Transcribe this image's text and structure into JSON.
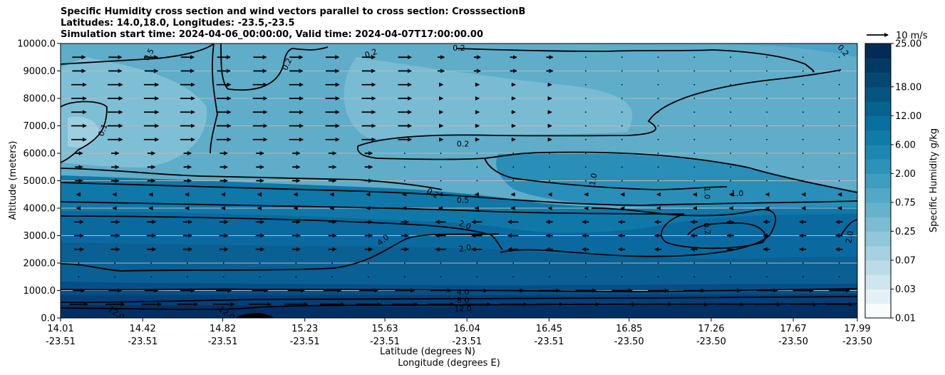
{
  "chart_data": {
    "type": "heatmap",
    "title_lines": [
      "Specific Humidity cross section and wind vectors parallel to cross section: CrosssectionB",
      "Latitudes: 14.0,18.0, Longitudes: -23.5,-23.5",
      "Simulation start time: 2024-04-06_00:00:00, Valid time: 2024-04-07T17:00:00.00"
    ],
    "ylabel": "Altitude (meters)",
    "xlabel_lines": [
      "Latitude (degrees N)",
      "Longitude (degrees E)"
    ],
    "ylim": [
      0,
      10000
    ],
    "y_ticks": [
      "0.0",
      "1000.0",
      "2000.0",
      "3000.0",
      "4000.0",
      "5000.0",
      "6000.0",
      "7000.0",
      "8000.0",
      "9000.0",
      "10000.0"
    ],
    "y_tick_values": [
      0,
      1000,
      2000,
      3000,
      4000,
      5000,
      6000,
      7000,
      8000,
      9000,
      10000
    ],
    "x_ticks": [
      {
        "lat": "14.01",
        "lon": "-23.51"
      },
      {
        "lat": "14.42",
        "lon": "-23.51"
      },
      {
        "lat": "14.82",
        "lon": "-23.51"
      },
      {
        "lat": "15.23",
        "lon": "-23.51"
      },
      {
        "lat": "15.63",
        "lon": "-23.51"
      },
      {
        "lat": "16.04",
        "lon": "-23.51"
      },
      {
        "lat": "16.45",
        "lon": "-23.51"
      },
      {
        "lat": "16.85",
        "lon": "-23.50"
      },
      {
        "lat": "17.26",
        "lon": "-23.50"
      },
      {
        "lat": "17.67",
        "lon": "-23.50"
      },
      {
        "lat": "17.99",
        "lon": "-23.50"
      }
    ],
    "xlim": [
      14.01,
      17.99
    ],
    "grid": "horizontal",
    "colorbar": {
      "label": "Specific Humidity g/kg",
      "ticks": [
        "0.01",
        "0.03",
        "0.07",
        "0.25",
        "0.75",
        "2.00",
        "6.00",
        "12.00",
        "18.00",
        "25.00"
      ],
      "levels": [
        0.01,
        0.02,
        0.03,
        0.05,
        0.07,
        0.1,
        0.25,
        0.4,
        0.75,
        1.0,
        2.0,
        3.0,
        6.0,
        9.0,
        12.0,
        15.0,
        18.0,
        21.0,
        25.0
      ],
      "colors": [
        "#f7fcfd",
        "#e3f1f5",
        "#cfe6ee",
        "#bbdce7",
        "#a6d1e0",
        "#91c7da",
        "#7bbcd3",
        "#66b2cb",
        "#53a8c6",
        "#3f9dbf",
        "#2b92b9",
        "#1d87b1",
        "#117ba8",
        "#096f9e",
        "#06628f",
        "#055580",
        "#044872",
        "#033a63",
        "#022c55"
      ]
    },
    "quiver_key": {
      "label": "10 m/s",
      "speed": 10
    },
    "contour_labels": [
      {
        "text": "0.5",
        "lat": 14.45,
        "alt": 9600,
        "rot": -60
      },
      {
        "text": "0.2",
        "lat": 15.14,
        "alt": 9250,
        "rot": -65
      },
      {
        "text": "0.2",
        "lat": 15.56,
        "alt": 9650,
        "rot": -20
      },
      {
        "text": "0.2",
        "lat": 16.0,
        "alt": 9850,
        "rot": 0
      },
      {
        "text": "0.2",
        "lat": 17.92,
        "alt": 9750,
        "rot": 50
      },
      {
        "text": "0.1",
        "lat": 14.22,
        "alt": 6850,
        "rot": -70
      },
      {
        "text": "0.2",
        "lat": 16.02,
        "alt": 6350,
        "rot": 0
      },
      {
        "text": "1.0",
        "lat": 16.67,
        "alt": 5050,
        "rot": -80
      },
      {
        "text": "1.0",
        "lat": 17.24,
        "alt": 4550,
        "rot": 90
      },
      {
        "text": "1.0",
        "lat": 17.39,
        "alt": 4550,
        "rot": 0
      },
      {
        "text": "0.2",
        "lat": 15.87,
        "alt": 4550,
        "rot": 30
      },
      {
        "text": "0.5",
        "lat": 16.02,
        "alt": 4300,
        "rot": 0
      },
      {
        "text": "2.0",
        "lat": 16.03,
        "alt": 3400,
        "rot": 20
      },
      {
        "text": "2.0",
        "lat": 16.03,
        "alt": 2550,
        "rot": -10
      },
      {
        "text": "4.0",
        "lat": 15.62,
        "alt": 2850,
        "rot": -40
      },
      {
        "text": "0.2",
        "lat": 17.24,
        "alt": 3250,
        "rot": 80
      },
      {
        "text": "2.0",
        "lat": 17.95,
        "alt": 2950,
        "rot": -80
      },
      {
        "text": "4.0",
        "lat": 16.02,
        "alt": 950,
        "rot": 0
      },
      {
        "text": "8.0",
        "lat": 16.02,
        "alt": 650,
        "rot": 0
      },
      {
        "text": "12.0",
        "lat": 16.02,
        "alt": 350,
        "rot": 0
      },
      {
        "text": "12.0",
        "lat": 14.29,
        "alt": 180,
        "rot": 35
      },
      {
        "text": "12.0",
        "lat": 14.84,
        "alt": 180,
        "rot": 35
      }
    ]
  }
}
